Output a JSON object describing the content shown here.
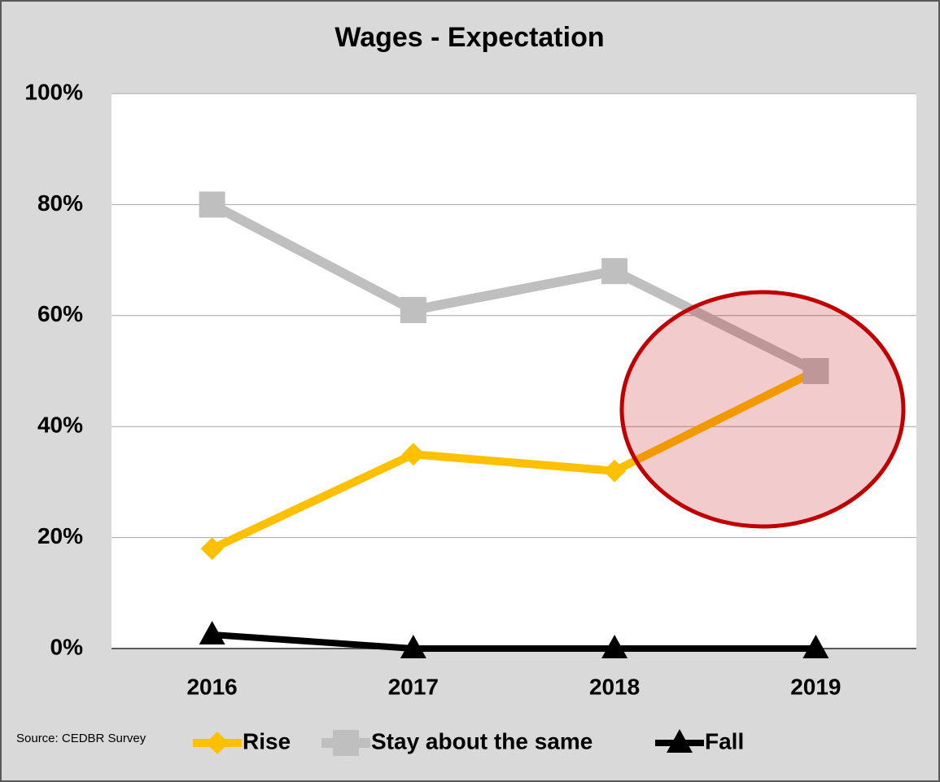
{
  "chart_data": {
    "type": "line",
    "title": "Wages - Expectation",
    "categories": [
      "2016",
      "2017",
      "2018",
      "2019"
    ],
    "series": [
      {
        "name": "Rise",
        "color": "#ffc000",
        "marker": "diamond",
        "values": [
          18,
          35,
          32,
          50
        ]
      },
      {
        "name": "Stay about the same",
        "color": "#bfbfbf",
        "marker": "square",
        "values": [
          80,
          61,
          68,
          50
        ]
      },
      {
        "name": "Fall",
        "color": "#000000",
        "marker": "triangle",
        "values": [
          2.5,
          0,
          0,
          0
        ]
      }
    ],
    "ylim": [
      0,
      100
    ],
    "yticks": [
      {
        "value": 0,
        "label": "0%"
      },
      {
        "value": 20,
        "label": "20%"
      },
      {
        "value": 40,
        "label": "40%"
      },
      {
        "value": 60,
        "label": "60%"
      },
      {
        "value": 80,
        "label": "80%"
      },
      {
        "value": 100,
        "label": "100%"
      }
    ],
    "grid": true,
    "legend": "bottom",
    "source": "Source: CEDBR Survey"
  }
}
